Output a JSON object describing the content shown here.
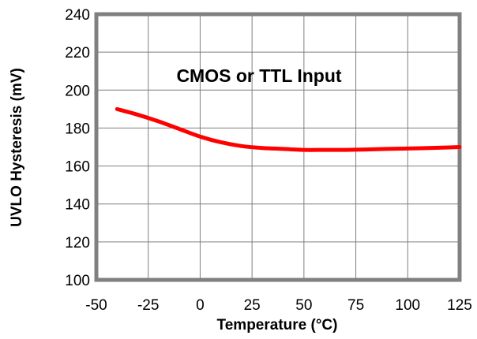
{
  "chart_data": {
    "type": "line",
    "title": "",
    "xlabel": "Temperature (°C)",
    "ylabel": "UVLO Hysteresis (mV)",
    "xlim": [
      -50,
      125
    ],
    "ylim": [
      100,
      240
    ],
    "xticks": [
      -50,
      -25,
      0,
      25,
      50,
      75,
      100,
      125
    ],
    "yticks": [
      100,
      120,
      140,
      160,
      180,
      200,
      220,
      240
    ],
    "xtick_labels": [
      "-50",
      "-25",
      "0",
      "25",
      "50",
      "75",
      "100",
      "125"
    ],
    "ytick_labels": [
      "100",
      "120",
      "140",
      "160",
      "180",
      "200",
      "220",
      "240"
    ],
    "grid": true,
    "annotation": "CMOS or TTL Input",
    "colors": {
      "line": "#ff0000",
      "grid": "#7f7f7f",
      "frame": "#808080"
    },
    "series": [
      {
        "x": [
          -40,
          -30,
          -20,
          -10,
          0,
          10,
          20,
          30,
          40,
          50,
          60,
          70,
          80,
          90,
          100,
          110,
          120,
          125
        ],
        "values": [
          190,
          187,
          183.5,
          179.5,
          175.5,
          172.5,
          170.5,
          169.5,
          169,
          168.5,
          168.5,
          168.5,
          168.7,
          169,
          169.2,
          169.5,
          169.8,
          170
        ]
      }
    ]
  }
}
